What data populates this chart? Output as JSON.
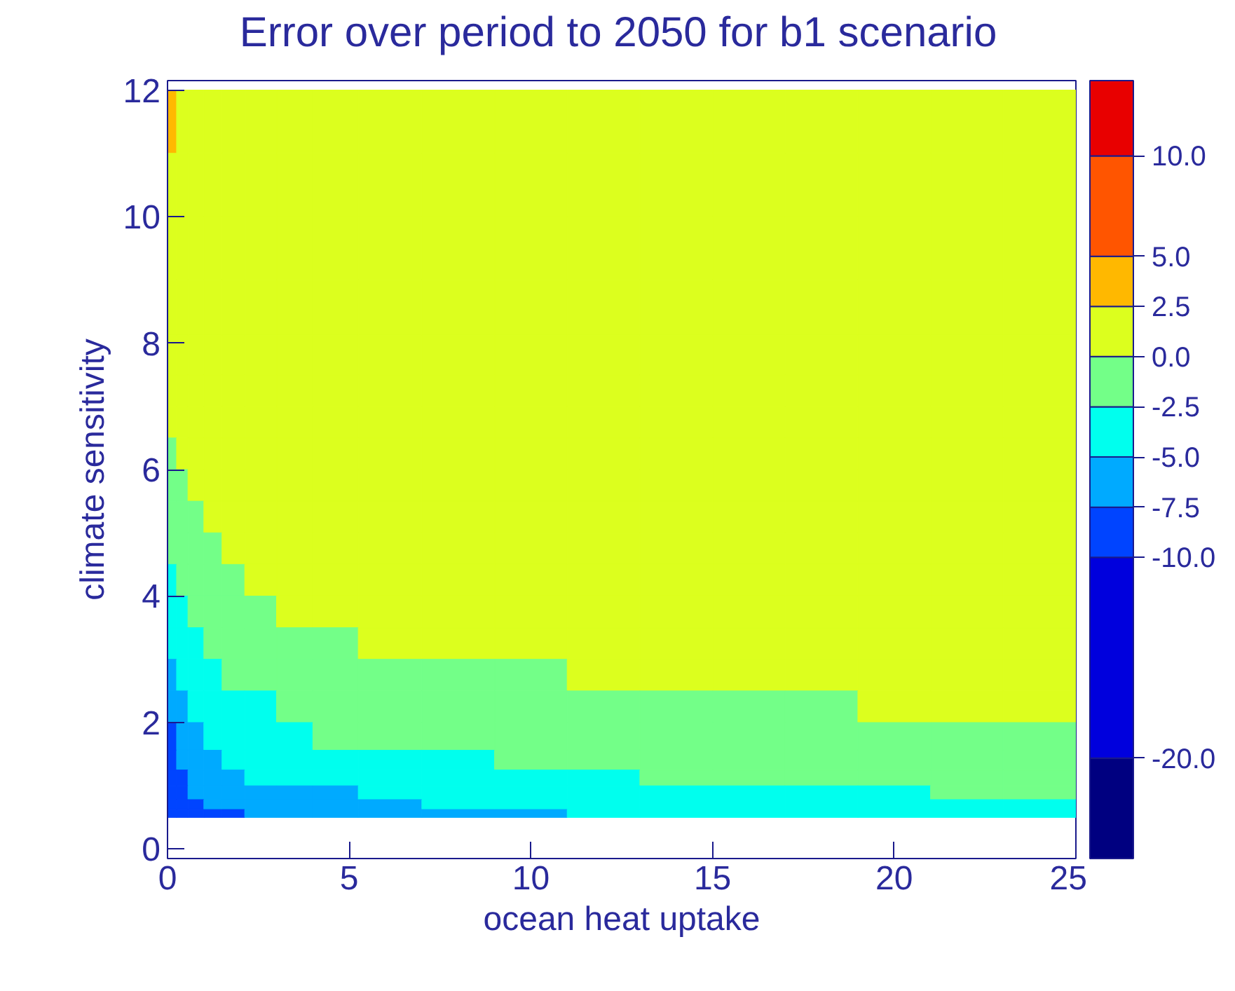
{
  "chart_data": {
    "type": "heatmap",
    "title": "Error over period to 2050 for b1 scenario",
    "xlabel": "ocean heat uptake",
    "ylabel": "climate sensitivity",
    "x": [
      0.125,
      0.375,
      0.75,
      1.25,
      1.75,
      2.5,
      3.5,
      4.5,
      6,
      8,
      10,
      12,
      14,
      16,
      18,
      20,
      22,
      24
    ],
    "y": [
      11.5,
      10.5,
      9.5,
      8.5,
      7.75,
      7.25,
      6.75,
      6.25,
      5.75,
      5.25,
      4.75,
      4.25,
      3.75,
      3.25,
      2.75,
      2.25,
      1.75,
      1.375,
      1.125,
      0.875,
      0.6875,
      0.5625
    ],
    "cells": [
      [
        3.7,
        1,
        1,
        1,
        1,
        1,
        1,
        1,
        1,
        1,
        1,
        1,
        1,
        1,
        1,
        1,
        1,
        1
      ],
      [
        1,
        1,
        1,
        1,
        1,
        1,
        1,
        1,
        1,
        1,
        1,
        1,
        1,
        1,
        1,
        1,
        1,
        1
      ],
      [
        1,
        1,
        1,
        1,
        1,
        1,
        1,
        1,
        1,
        1,
        1,
        1,
        1,
        1,
        1,
        1,
        1,
        1
      ],
      [
        1,
        1,
        1,
        1,
        1,
        1,
        1,
        1,
        1,
        1,
        1,
        1,
        1,
        1,
        1,
        1,
        1,
        1
      ],
      [
        1,
        1,
        1,
        1,
        1,
        1,
        1,
        1,
        1,
        1,
        1,
        1,
        1,
        1,
        1,
        1,
        1,
        1
      ],
      [
        1,
        1,
        1,
        1,
        1,
        1,
        1,
        1,
        1,
        1,
        1,
        1,
        1,
        1,
        1,
        1,
        1,
        1
      ],
      [
        1,
        1,
        1,
        1,
        1,
        1,
        1,
        1,
        1,
        1,
        1,
        1,
        1,
        1,
        1,
        1,
        1,
        1
      ],
      [
        -1.2,
        1,
        1,
        1,
        1,
        1,
        1,
        1,
        1,
        1,
        1,
        1,
        1,
        1,
        1,
        1,
        1,
        1
      ],
      [
        -1.2,
        -1.2,
        1,
        1,
        1,
        1,
        1,
        1,
        1,
        1,
        1,
        1,
        1,
        1,
        1,
        1,
        1,
        1
      ],
      [
        -1.2,
        -1.2,
        -1.2,
        1,
        1,
        1,
        1,
        1,
        1,
        1,
        1,
        1,
        1,
        1,
        1,
        1,
        1,
        1
      ],
      [
        -1.2,
        -1.2,
        -1.2,
        -1.2,
        1,
        1,
        1,
        1,
        1,
        1,
        1,
        1,
        1,
        1,
        1,
        1,
        1,
        1
      ],
      [
        -3.7,
        -1.2,
        -1.2,
        -1.2,
        -1.2,
        1,
        1,
        1,
        1,
        1,
        1,
        1,
        1,
        1,
        1,
        1,
        1,
        1
      ],
      [
        -3.7,
        -3.7,
        -1.2,
        -1.2,
        -1.2,
        -1.2,
        1,
        1,
        1,
        1,
        1,
        1,
        1,
        1,
        1,
        1,
        1,
        1
      ],
      [
        -3.7,
        -3.7,
        -3.7,
        -1.2,
        -1.2,
        -1.2,
        -1.2,
        -1.2,
        1,
        1,
        1,
        1,
        1,
        1,
        1,
        1,
        1,
        1
      ],
      [
        -6.2,
        -3.7,
        -3.7,
        -3.7,
        -1.2,
        -1.2,
        -1.2,
        -1.2,
        -1.2,
        -1.2,
        -1.2,
        1,
        1,
        1,
        1,
        1,
        1,
        1
      ],
      [
        -6.2,
        -6.2,
        -3.7,
        -3.7,
        -3.7,
        -3.7,
        -1.2,
        -1.2,
        -1.2,
        -1.2,
        -1.2,
        -1.2,
        -1.2,
        -1.2,
        -1.2,
        1,
        1,
        1
      ],
      [
        -8.7,
        -6.2,
        -6.2,
        -3.7,
        -3.7,
        -3.7,
        -3.7,
        -1.2,
        -1.2,
        -1.2,
        -1.2,
        -1.2,
        -1.2,
        -1.2,
        -1.2,
        -1.2,
        -1.2,
        -1.2
      ],
      [
        -8.7,
        -6.2,
        -6.2,
        -6.2,
        -3.7,
        -3.7,
        -3.7,
        -3.7,
        -3.7,
        -3.7,
        -1.2,
        -1.2,
        -1.2,
        -1.2,
        -1.2,
        -1.2,
        -1.2,
        -1.2
      ],
      [
        -8.7,
        -8.7,
        -6.2,
        -6.2,
        -6.2,
        -3.7,
        -3.7,
        -3.7,
        -3.7,
        -3.7,
        -3.7,
        -3.7,
        -1.2,
        -1.2,
        -1.2,
        -1.2,
        -1.2,
        -1.2
      ],
      [
        -8.7,
        -8.7,
        -6.2,
        -6.2,
        -6.2,
        -6.2,
        -6.2,
        -6.2,
        -3.7,
        -3.7,
        -3.7,
        -3.7,
        -3.7,
        -3.7,
        -3.7,
        -3.7,
        -1.2,
        -1.2
      ],
      [
        -8.7,
        -8.7,
        -8.7,
        -6.2,
        -6.2,
        -6.2,
        -6.2,
        -6.2,
        -6.2,
        -3.7,
        -3.7,
        -3.7,
        -3.7,
        -3.7,
        -3.7,
        -3.7,
        -3.7,
        -3.7
      ],
      [
        -8.7,
        -8.7,
        -8.7,
        -8.7,
        -8.7,
        -6.2,
        -6.2,
        -6.2,
        -6.2,
        -6.2,
        -6.2,
        -3.7,
        -3.7,
        -3.7,
        -3.7,
        -3.7,
        -3.7,
        -3.7
      ]
    ],
    "xlim": [
      0,
      25
    ],
    "ylim": [
      -0.15,
      12.15
    ],
    "xticks": [
      0,
      5,
      10,
      15,
      20,
      25
    ],
    "yticks": [
      0,
      2,
      4,
      6,
      8,
      10,
      12
    ],
    "clim": [
      -25,
      13.75
    ],
    "cticks": [
      {
        "value": -20,
        "label": "-20.0"
      },
      {
        "value": -10,
        "label": "-10.0"
      },
      {
        "value": -7.5,
        "label": "-7.5"
      },
      {
        "value": -5,
        "label": "-5.0"
      },
      {
        "value": -2.5,
        "label": "-2.5"
      },
      {
        "value": 0,
        "label": "0.0"
      },
      {
        "value": 2.5,
        "label": "2.5"
      },
      {
        "value": 5,
        "label": "5.0"
      },
      {
        "value": 10,
        "label": "10.0"
      }
    ],
    "colors": [
      "#000080",
      "#0000dd",
      "#0044ff",
      "#00aaff",
      "#00ffee",
      "#73ff88",
      "#dcff1e",
      "#ffb800",
      "#ff5500",
      "#e80000"
    ],
    "grid": false
  }
}
